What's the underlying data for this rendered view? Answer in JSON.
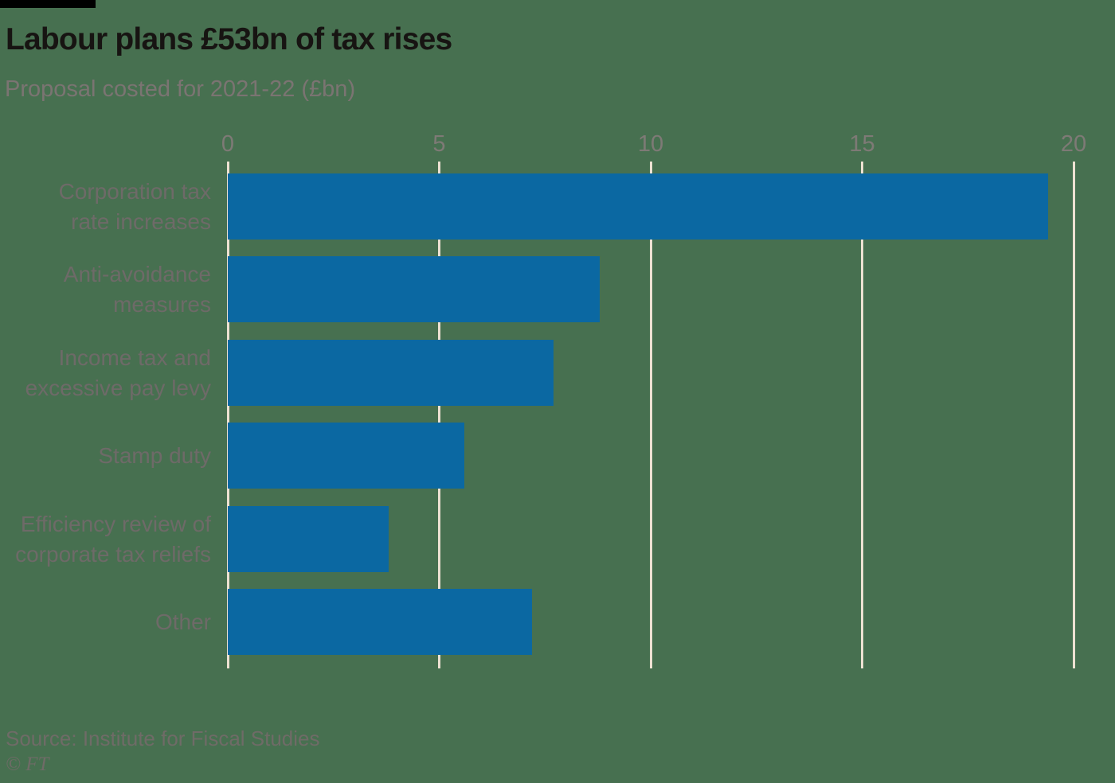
{
  "page": {
    "title": "Labour plans £53bn of tax rises",
    "subtitle": "Proposal costed for 2021-22 (£bn)",
    "source": "Source: Institute for Fiscal Studies",
    "copyright": "© FT"
  },
  "colors": {
    "background": "#477050",
    "top_bar": "#000000",
    "bar": "#0B68A2",
    "gridline": "#EDE1D2",
    "title_text": "#171412",
    "subtitle_text": "#7B7472",
    "category_text": "#6E6A68",
    "tick_text": "#7E7A76",
    "source_text": "#6F6B67"
  },
  "chart_data": {
    "type": "bar",
    "orientation": "horizontal",
    "title": "Labour plans £53bn of tax rises",
    "subtitle": "Proposal costed for 2021-22 (£bn)",
    "categories": [
      "Corporation tax rate increases",
      "Anti-avoidance measures",
      "Income tax and excessive pay levy",
      "Stamp duty",
      "Efficiency review of corporate tax reliefs",
      "Other"
    ],
    "category_lines": [
      [
        "Corporation tax",
        "rate increases"
      ],
      [
        "Anti-avoidance",
        "measures"
      ],
      [
        "Income tax and",
        "excessive pay levy"
      ],
      [
        "Stamp duty"
      ],
      [
        "Efficiency review of",
        "corporate tax reliefs"
      ],
      [
        "Other"
      ]
    ],
    "values": [
      19.4,
      8.8,
      7.7,
      5.6,
      3.8,
      7.2
    ],
    "xlabel": "",
    "ylabel": "",
    "xlim": [
      0,
      20
    ],
    "xticks": [
      0,
      5,
      10,
      15,
      20
    ],
    "grid": true,
    "legend": false,
    "source": "Source: Institute for Fiscal Studies"
  }
}
